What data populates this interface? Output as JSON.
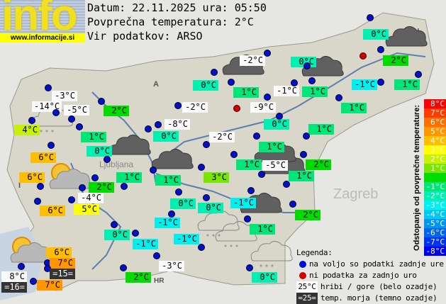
{
  "logo": {
    "word": "info",
    "url": "www.informacije.si"
  },
  "header": {
    "date_line": "Datum: 22.11.2025 ura: 05:50",
    "avg_line": "Povprečna temperatura: 2°C",
    "source_line": "Vir podatkov: ARSO"
  },
  "average_temp": 2,
  "stations": [
    {
      "temp": "-3°C",
      "kind": "mountain"
    },
    {
      "temp": "-14°C",
      "kind": "mountain"
    },
    {
      "temp": "-5°C",
      "kind": "mountain"
    },
    {
      "temp": "4°C",
      "kind": "valley"
    },
    {
      "temp": "2°C",
      "kind": "valley"
    },
    {
      "temp": "1°C",
      "kind": "valley"
    },
    {
      "temp": "0°C",
      "kind": "valley"
    },
    {
      "temp": "0°C",
      "kind": "valley"
    },
    {
      "temp": "-8°C",
      "kind": "mountain"
    },
    {
      "temp": "-2°C",
      "kind": "mountain"
    },
    {
      "temp": "0°C",
      "kind": "valley"
    },
    {
      "temp": "-2°C",
      "kind": "mountain"
    },
    {
      "temp": "6°C",
      "kind": "valley"
    },
    {
      "temp": "-2°C",
      "kind": "mountain"
    },
    {
      "temp": "1°C",
      "kind": "valley"
    },
    {
      "temp": "0°C",
      "kind": "valley"
    },
    {
      "temp": "1°C",
      "kind": "valley"
    },
    {
      "temp": "-1°C",
      "kind": "mountain"
    },
    {
      "temp": "0°C",
      "kind": "valley"
    },
    {
      "temp": "",
      "kind": "missing"
    },
    {
      "temp": "2°C",
      "kind": "valley"
    },
    {
      "temp": "1°C",
      "kind": "valley"
    },
    {
      "temp": "-1°C",
      "kind": "valley"
    },
    {
      "temp": "-9°C",
      "kind": "mountain"
    },
    {
      "temp": "",
      "kind": "missing"
    },
    {
      "temp": "0°C",
      "kind": "valley"
    },
    {
      "temp": "1°C",
      "kind": "valley"
    },
    {
      "temp": "1°C",
      "kind": "valley"
    },
    {
      "temp": "1°C",
      "kind": "valley"
    },
    {
      "temp": "6°C",
      "kind": "valley"
    },
    {
      "temp": "2°C",
      "kind": "valley"
    },
    {
      "temp": "-4°C",
      "kind": "mountain"
    },
    {
      "temp": "5°C",
      "kind": "valley"
    },
    {
      "temp": "1°C",
      "kind": "valley"
    },
    {
      "temp": "1°C",
      "kind": "valley"
    },
    {
      "temp": "3°C",
      "kind": "valley"
    },
    {
      "temp": "6°C",
      "kind": "valley"
    },
    {
      "temp": "0°C",
      "kind": "valley"
    },
    {
      "temp": "0°C",
      "kind": "valley"
    },
    {
      "temp": "-1°C",
      "kind": "valley"
    },
    {
      "temp": "0°C",
      "kind": "valley"
    },
    {
      "temp": "-1°C",
      "kind": "valley"
    },
    {
      "temp": "-1°C",
      "kind": "valley"
    },
    {
      "temp": "-3°C",
      "kind": "mountain"
    },
    {
      "temp": "6°C",
      "kind": "valley"
    },
    {
      "temp": "7°C",
      "kind": "valley"
    },
    {
      "temp": "=15=",
      "kind": "sea"
    },
    {
      "temp": "8°C",
      "kind": "mountain"
    },
    {
      "temp": "=16=",
      "kind": "sea"
    },
    {
      "temp": "7°C",
      "kind": "valley"
    },
    {
      "temp": "2°C",
      "kind": "valley"
    },
    {
      "temp": "1°C",
      "kind": "valley"
    },
    {
      "temp": "2°C",
      "kind": "valley"
    },
    {
      "temp": "-5°C",
      "kind": "mountain"
    },
    {
      "temp": "1°C",
      "kind": "valley"
    },
    {
      "temp": "-1°C",
      "kind": "valley"
    },
    {
      "temp": "2°C",
      "kind": "valley"
    },
    {
      "temp": "1°C",
      "kind": "valley"
    },
    {
      "temp": "0°C",
      "kind": "valley"
    }
  ],
  "weather_icons": [
    "cloudy",
    "cloudy",
    "light-rain",
    "partly-sunny",
    "cloudy",
    "cloudy",
    "cloudy",
    "cloudy",
    "cloudy",
    "cloudy",
    "light-rain",
    "light-rain",
    "partly-sunny",
    "light-rain"
  ],
  "map_labels": {
    "ljubljana": "Ljubljana",
    "zagreb": "Zagreb",
    "austria": "A",
    "italy": "I",
    "croatia": "HR",
    "hungary": "H"
  },
  "scale": {
    "title": "Odstopanje od povprečne temperature:",
    "rows": [
      {
        "label": "8°C",
        "color": "#ff0000"
      },
      {
        "label": "7°C",
        "color": "#ff3c00"
      },
      {
        "label": "6°C",
        "color": "#ff6e00"
      },
      {
        "label": "5°C",
        "color": "#ff9600"
      },
      {
        "label": "4°C",
        "color": "#ffbe00"
      },
      {
        "label": "3°C",
        "color": "#ffff00"
      },
      {
        "label": "2°C",
        "color": "#c8f000"
      },
      {
        "label": "1°C",
        "color": "#78e600"
      },
      {
        "label": "",
        "color": "#00dc00"
      },
      {
        "label": "-1°C",
        "color": "#00e678"
      },
      {
        "label": "-2°C",
        "color": "#00f0b4"
      },
      {
        "label": "-3°C",
        "color": "#00f0f0"
      },
      {
        "label": "-4°C",
        "color": "#00c8f0"
      },
      {
        "label": "-5°C",
        "color": "#0096f0"
      },
      {
        "label": "-6°C",
        "color": "#0064f0"
      },
      {
        "label": "-7°C",
        "color": "#0032f0"
      },
      {
        "label": "-8°C",
        "color": "#0000f0"
      }
    ]
  },
  "legend": {
    "title": "Legenda:",
    "available": "na voljo so podatki zadnje ure",
    "missing": "ni podatka za zadnjo uro",
    "mountain_sample": "25°C",
    "mountain_text": "hribi / gore (belo ozadje)",
    "sea_sample": "=25=",
    "sea_text": "temp. morja (temno ozadje)"
  }
}
